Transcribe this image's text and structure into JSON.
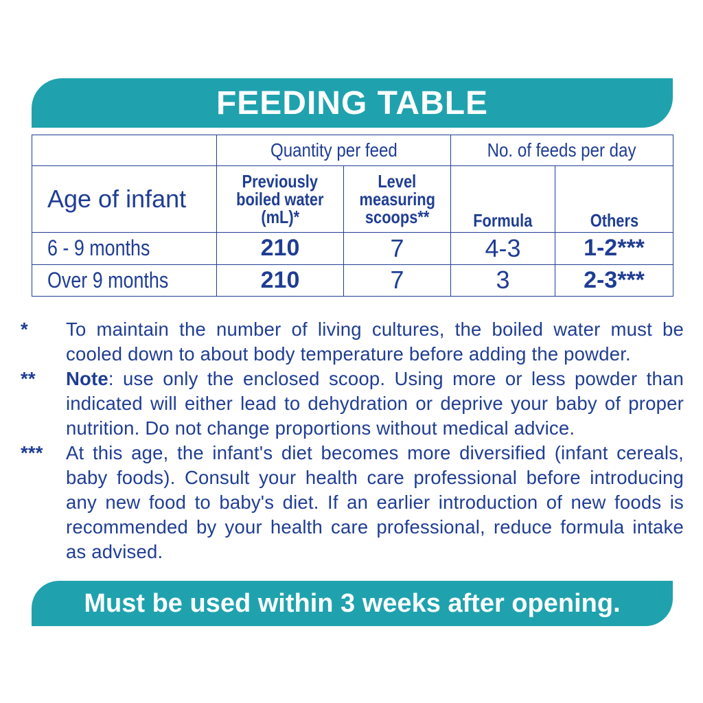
{
  "header": {
    "title": "FEEDING TABLE"
  },
  "table": {
    "group_headers": {
      "quantity": "Quantity per feed",
      "feeds": "No. of feeds per day"
    },
    "age_header": "Age of infant",
    "sub_headers": {
      "water_line1": "Previously",
      "water_line2": "boiled water",
      "water_line3": "(mL)*",
      "scoops_line1": "Level",
      "scoops_line2": "measuring",
      "scoops_line3": "scoops**",
      "formula": "Formula",
      "others": "Others"
    },
    "rows": [
      {
        "age": "6 - 9 months",
        "water": "210",
        "scoops": "7",
        "formula": "4-3",
        "others": "1-2***"
      },
      {
        "age": "Over 9 months",
        "water": "210",
        "scoops": "7",
        "formula": "3",
        "others": "2-3***"
      }
    ]
  },
  "notes": [
    {
      "marker": "*",
      "label": "",
      "text": "To maintain the number of living cultures, the boiled water must be cooled down to about body temperature before adding the powder."
    },
    {
      "marker": "**",
      "label": "Note",
      "text": ": use only the enclosed scoop. Using more or less powder than indicated will either lead to dehydration or deprive your baby of proper nutrition. Do not change proportions without medical advice."
    },
    {
      "marker": "***",
      "label": "",
      "text": "At this age, the infant's diet becomes more diversified (infant cereals, baby foods). Consult your health care professional before introducing any new food to baby's diet. If an earlier introduction of new foods is recommended by your health care professional, reduce formula intake as advised."
    }
  ],
  "footer": {
    "warning": "Must be used within 3 weeks after opening."
  },
  "colors": {
    "band": "#1fa2ae",
    "text": "#1f3d93",
    "band_text": "#ffffff"
  }
}
